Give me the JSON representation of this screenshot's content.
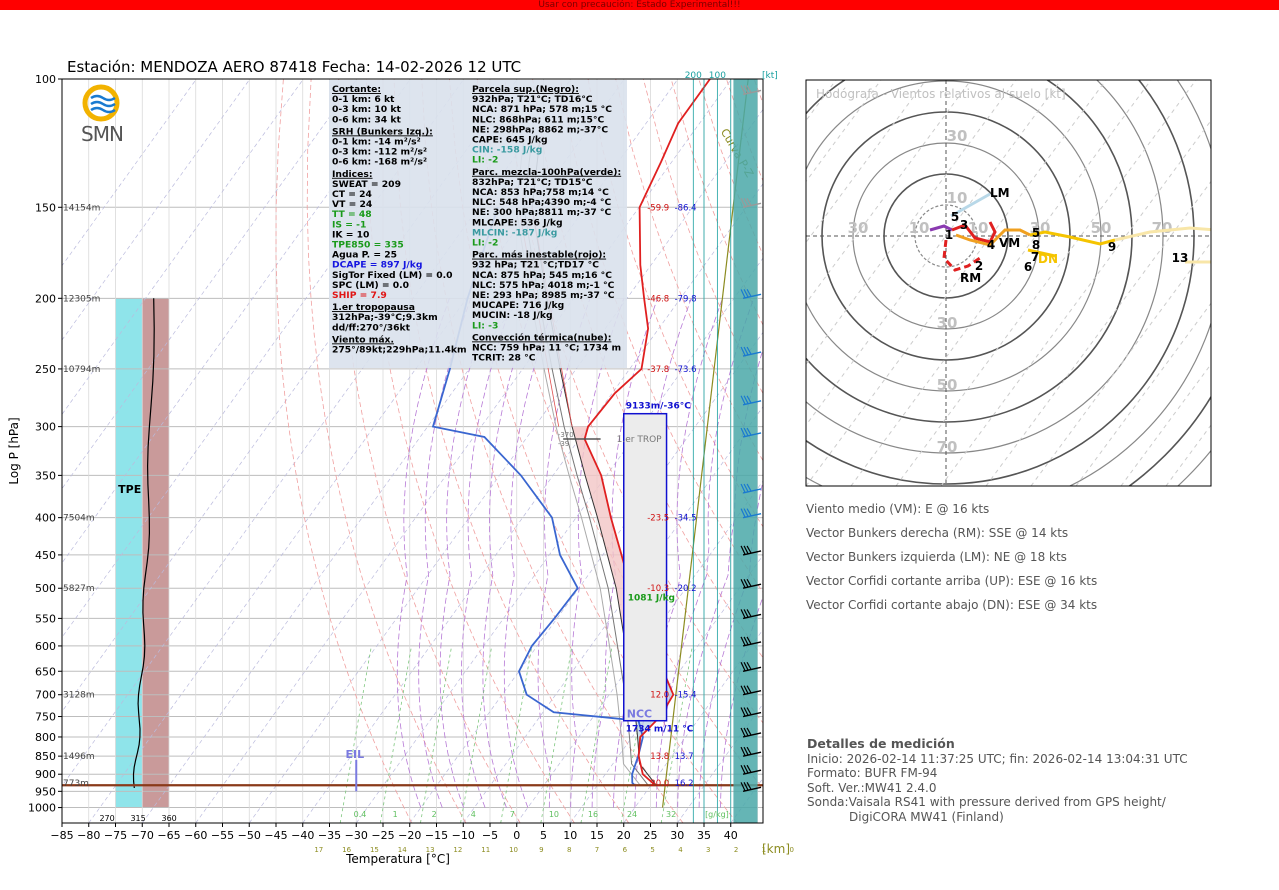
{
  "banner": "Usar con precaución: Estado Experimental!!!",
  "title": "Estación: MENDOZA AERO 87418   Fecha: 14-02-2026 12 UTC",
  "logo": "SMN",
  "skewt": {
    "ylabel": "Log P [hPa]",
    "xlabel": "Temperatura [°C]",
    "km_label": "[km]",
    "kt_label": "[kt]",
    "pressure_ticks": [
      "100",
      "150",
      "200",
      "250",
      "300",
      "350",
      "400",
      "450",
      "500",
      "550",
      "600",
      "650",
      "700",
      "750",
      "800",
      "850",
      "900",
      "950",
      "1000"
    ],
    "temp_ticks": [
      "−85",
      "−80",
      "−75",
      "−70",
      "−65",
      "−60",
      "−55",
      "−50",
      "−45",
      "−40",
      "−35",
      "−30",
      "−25",
      "−20",
      "−15",
      "−10",
      "−5",
      "0",
      "5",
      "10",
      "15",
      "20",
      "25",
      "30",
      "35",
      "40"
    ],
    "km_ticks": [
      "17",
      "16",
      "15",
      "14",
      "13",
      "12",
      "11",
      "10",
      "9",
      "8",
      "7",
      "6",
      "5",
      "4",
      "3",
      "2",
      "1",
      "0"
    ],
    "mixing_ratio_labels": [
      "0.4",
      "1",
      "2",
      "4",
      "7",
      "10",
      "16",
      "24",
      "32",
      "[g/kg]"
    ],
    "theta_labels": [
      "270",
      "315",
      "360"
    ],
    "wind_ticks": [
      "200",
      "100"
    ],
    "heights": [
      {
        "p": 150,
        "label": "14154m"
      },
      {
        "p": 200,
        "label": "12305m"
      },
      {
        "p": 250,
        "label": "10794m"
      },
      {
        "p": 400,
        "label": "7504m"
      },
      {
        "p": 500,
        "label": "5827m"
      },
      {
        "p": 700,
        "label": "3128m"
      },
      {
        "p": 850,
        "label": "1496m"
      },
      {
        "p": 925,
        "label": "773m"
      }
    ],
    "level_values": [
      {
        "p": 150,
        "t": "-59.9",
        "td": "-86.4"
      },
      {
        "p": 200,
        "t": "-46.8",
        "td": "-79.8"
      },
      {
        "p": 250,
        "t": "-37.8",
        "td": "-73.6"
      },
      {
        "p": 400,
        "t": "-23.5",
        "td": "-34.5"
      },
      {
        "p": 500,
        "t": "-10.3",
        "td": "-20.2"
      },
      {
        "p": 700,
        "t": "12.0",
        "td": "-15.4"
      },
      {
        "p": 850,
        "t": "13.8",
        "td": "13.7"
      },
      {
        "p": 925,
        "t": "20.0",
        "td": "16.2"
      }
    ],
    "labels": {
      "curva": "Curva P-Z",
      "tpe": "TPE",
      "eil": "EIL",
      "trop": "1.er TROP",
      "trop_small1": "-370",
      "trop_small2": "-39",
      "ncc": "NCC",
      "ncc_height": "1734 m/11 °C",
      "top_height": "9133m/-36°C",
      "cape_box": "1081 J/kg"
    }
  },
  "chart_data": {
    "type": "skew-t log-p",
    "title": "Estación: MENDOZA AERO 87418   Fecha: 14-02-2026 12 UTC",
    "xlabel": "Temperatura [°C]",
    "ylabel": "Log P [hPa]",
    "xlim": [
      -85,
      45
    ],
    "ylim": [
      1050,
      100
    ],
    "temperature_profile": [
      {
        "p": 932,
        "t": 21
      },
      {
        "p": 925,
        "t": 20
      },
      {
        "p": 900,
        "t": 17
      },
      {
        "p": 850,
        "t": 13.8
      },
      {
        "p": 800,
        "t": 11.5
      },
      {
        "p": 750,
        "t": 12.5
      },
      {
        "p": 700,
        "t": 12
      },
      {
        "p": 650,
        "t": 7
      },
      {
        "p": 600,
        "t": 2
      },
      {
        "p": 550,
        "t": -3.5
      },
      {
        "p": 500,
        "t": -10.3
      },
      {
        "p": 450,
        "t": -16.5
      },
      {
        "p": 400,
        "t": -23.5
      },
      {
        "p": 350,
        "t": -31
      },
      {
        "p": 312,
        "t": -39
      },
      {
        "p": 300,
        "t": -40
      },
      {
        "p": 270,
        "t": -39.5
      },
      {
        "p": 250,
        "t": -37.8
      },
      {
        "p": 220,
        "t": -42
      },
      {
        "p": 200,
        "t": -46.8
      },
      {
        "p": 180,
        "t": -52
      },
      {
        "p": 150,
        "t": -59.9
      },
      {
        "p": 130,
        "t": -62
      },
      {
        "p": 115,
        "t": -64
      },
      {
        "p": 100,
        "t": -64
      }
    ],
    "dewpoint_profile": [
      {
        "p": 932,
        "t": 17
      },
      {
        "p": 925,
        "t": 16.2
      },
      {
        "p": 900,
        "t": 15
      },
      {
        "p": 850,
        "t": 13.7
      },
      {
        "p": 800,
        "t": 12
      },
      {
        "p": 760,
        "t": 9
      },
      {
        "p": 740,
        "t": -8
      },
      {
        "p": 700,
        "t": -15.4
      },
      {
        "p": 650,
        "t": -20
      },
      {
        "p": 600,
        "t": -21
      },
      {
        "p": 550,
        "t": -20.5
      },
      {
        "p": 500,
        "t": -20.2
      },
      {
        "p": 450,
        "t": -28
      },
      {
        "p": 400,
        "t": -34.5
      },
      {
        "p": 350,
        "t": -46
      },
      {
        "p": 310,
        "t": -58
      },
      {
        "p": 300,
        "t": -69
      },
      {
        "p": 250,
        "t": -73.6
      },
      {
        "p": 200,
        "t": -79.8
      },
      {
        "p": 150,
        "t": -86.4
      }
    ],
    "parcel_profile": [
      {
        "p": 932,
        "t": 21
      },
      {
        "p": 871,
        "t": 15
      },
      {
        "p": 800,
        "t": 11
      },
      {
        "p": 700,
        "t": 4.5
      },
      {
        "p": 600,
        "t": -3.5
      },
      {
        "p": 500,
        "t": -13
      },
      {
        "p": 400,
        "t": -26
      },
      {
        "p": 350,
        "t": -34
      },
      {
        "p": 300,
        "t": -43
      },
      {
        "p": 250,
        "t": -53
      },
      {
        "p": 200,
        "t": -65
      },
      {
        "p": 150,
        "t": -80
      },
      {
        "p": 120,
        "t": -88
      }
    ],
    "curva_pz": [
      {
        "p": 100,
        "t": -55
      },
      {
        "p": 1000,
        "t": 42
      }
    ],
    "tpe_band": {
      "t0": -75,
      "t1": -65,
      "p0": 200,
      "p1": 1000
    },
    "cape_box": {
      "t0": 20,
      "t1": 28,
      "p_top": 288,
      "p_bottom": 760
    },
    "levels": {
      "trop_p": 312,
      "ncc_p": 759,
      "eil_p": 860,
      "base_p": 932
    },
    "indices": {
      "Cortante": [
        "0-1 km: 6 kt",
        "0-3 km: 10 kt",
        "0-6 km: 34 kt"
      ],
      "SRH (Bunkers Izq.)": [
        "0-1 km: -14 m²/s²",
        "0-3 km: -112 m²/s²",
        "0-6 km: -168 m²/s²"
      ],
      "Indices": [
        "SWEAT = 209",
        "CT = 24",
        "VT = 24",
        "TT = 48",
        "IS = -1",
        "IK = 10",
        "TPE850 = 335",
        "Agua P. = 25",
        "DCAPE = 897 J/kg",
        "SigTor Fixed (LM) = 0.0",
        "SPC (LM) = 0.0",
        "SHIP = 7.9"
      ],
      "1.er tropopausa": [
        "312hPa;-39°C;9.3km",
        "dd/ff:270°/36kt"
      ],
      "Viento máx.": [
        "275°/89kt;229hPa;11.4km"
      ],
      "Parcela sup.(Negro)": [
        "932hPa; T21°C; TD16°C",
        "NCA: 871 hPa; 578 m;15 °C",
        "NLC: 868hPa; 611 m;15°C",
        "NE: 298hPa; 8862 m;-37°C",
        "CAPE: 645 J/kg",
        "CIN: -158 J/kg",
        "LI: -2"
      ],
      "Parc. mezcla-100hPa(verde)": [
        "832hPa; T21°C; TD15°C",
        "NCA: 853 hPa;758 m;14 °C",
        "NLC: 548 hPa;4390 m;-4 °C",
        "NE: 300 hPa;8811 m;-37 °C",
        "MLCAPE: 536 J/kg",
        "MLCIN: -187 J/kg",
        "LI: -2"
      ],
      "Parc. más inestable(rojo)": [
        "932 hPa; T21 °C;TD17 °C",
        "NCA: 875 hPa; 545 m;16 °C",
        "NLC: 575 hPa; 4018 m;-1 °C",
        "NE: 293 hPa; 8985 m;-37 °C",
        "MUCAPE: 716 J/kg",
        "MUCIN: -18 J/kg",
        "LI: -3"
      ],
      "Convección térmica(nube)": [
        "NCC: 759 hPa; 11 °C; 1734 m",
        "TCRIT: 28 °C"
      ]
    }
  },
  "indices_box": {
    "left": [
      {
        "text": "Cortante:",
        "style": "hdr"
      },
      {
        "text": "0-1 km: 6 kt"
      },
      {
        "text": "0-3 km: 10 kt"
      },
      {
        "text": "0-6 km: 34 kt"
      },
      {
        "text": "SRH (Bunkers Izq.):",
        "style": "hdr"
      },
      {
        "text": "0-1 km: -14 m²/s²"
      },
      {
        "text": "0-3 km: -112 m²/s²"
      },
      {
        "text": "0-6 km: -168 m²/s²"
      },
      {
        "text": "Indices:",
        "style": "hdr"
      },
      {
        "text": "SWEAT = 209"
      },
      {
        "text": "CT = 24"
      },
      {
        "text": "VT = 24"
      },
      {
        "text": "TT = 48",
        "color": "#1a9a1a"
      },
      {
        "text": "IS = -1",
        "color": "#1a9a1a"
      },
      {
        "text": "IK = 10"
      },
      {
        "text": "TPE850 = 335",
        "color": "#1a9a1a"
      },
      {
        "text": "Agua P. = 25"
      },
      {
        "text": "DCAPE = 897 J/kg",
        "color": "#1515e0"
      },
      {
        "text": "SigTor Fixed (LM) = 0.0"
      },
      {
        "text": "SPC (LM) = 0.0"
      },
      {
        "text": "SHIP = 7.9",
        "color": "#e01515"
      },
      {
        "text": "1.er tropopausa",
        "style": "hdr"
      },
      {
        "text": "312hPa;-39°C;9.3km"
      },
      {
        "text": "dd/ff:270°/36kt"
      },
      {
        "text": "Viento máx.",
        "style": "hdr"
      },
      {
        "text": "275°/89kt;229hPa;11.4km"
      }
    ],
    "right": [
      {
        "text": "Parcela sup.(Negro):",
        "style": "hdr"
      },
      {
        "text": "932hPa; T21°C; TD16°C"
      },
      {
        "text": "NCA: 871 hPa; 578 m;15 °C"
      },
      {
        "text": "NLC: 868hPa; 611 m;15°C"
      },
      {
        "text": "NE: 298hPa; 8862 m;-37°C"
      },
      {
        "text": "CAPE: 645 J/kg"
      },
      {
        "text": "CIN: -158 J/kg",
        "color": "#3a9aa0"
      },
      {
        "text": "LI: -2",
        "color": "#1a9a1a"
      },
      {
        "text": "Parc. mezcla-100hPa(verde):",
        "style": "hdr"
      },
      {
        "text": "832hPa; T21°C; TD15°C"
      },
      {
        "text": "NCA: 853 hPa;758 m;14 °C"
      },
      {
        "text": "NLC: 548 hPa;4390 m;-4 °C"
      },
      {
        "text": "NE: 300 hPa;8811 m;-37 °C"
      },
      {
        "text": "MLCAPE: 536 J/kg"
      },
      {
        "text": "MLCIN: -187 J/kg",
        "color": "#3a9aa0"
      },
      {
        "text": "LI: -2",
        "color": "#1a9a1a"
      },
      {
        "text": "Parc. más inestable(rojo):",
        "style": "hdr"
      },
      {
        "text": "932 hPa; T21 °C;TD17 °C"
      },
      {
        "text": "NCA: 875 hPa; 545 m;16 °C"
      },
      {
        "text": "NLC: 575 hPa; 4018 m;-1 °C"
      },
      {
        "text": "NE: 293 hPa; 8985 m;-37 °C"
      },
      {
        "text": "MUCAPE: 716 J/kg"
      },
      {
        "text": "MUCIN: -18 J/kg"
      },
      {
        "text": "LI: -3",
        "color": "#1a9a1a"
      },
      {
        "text": "Convección térmica(nube):",
        "style": "hdr"
      },
      {
        "text": "NCC: 759 hPa; 11 °C; 1734 m"
      },
      {
        "text": "TCRIT: 28 °C"
      }
    ]
  },
  "hodograph": {
    "title": "Hodógrafa - Vientos relativos al suelo [kt]",
    "ring_labels": [
      "10",
      "30",
      "50",
      "70"
    ],
    "points": [
      "1",
      "2",
      "3",
      "4",
      "5",
      "5",
      "6",
      "7",
      "8",
      "9",
      "13"
    ],
    "markers": [
      "LM",
      "VM",
      "RM",
      "DN"
    ]
  },
  "wind_info": [
    "Viento medio (VM): E @ 16 kts",
    "Vector Bunkers derecha (RM): SSE @ 14 kts",
    "Vector Bunkers izquierda (LM): NE @ 18 kts",
    "Vector Corfidi cortante arriba (UP): ESE @ 16 kts",
    "Vector Corfidi cortante abajo (DN): ESE @ 34 kts"
  ],
  "details": {
    "heading": "Detalles de medición",
    "lines": [
      "Inicio: 2026-02-14 11:37:25 UTC; fin: 2026-02-14 13:04:31 UTC",
      "Formato: BUFR FM-94",
      "Soft. Ver.:MW41 2.4.0",
      "Sonda:Vaisala RS41 with pressure derived from GPS height/"
    ],
    "indent_line": "DigiCORA MW41 (Finland)"
  }
}
